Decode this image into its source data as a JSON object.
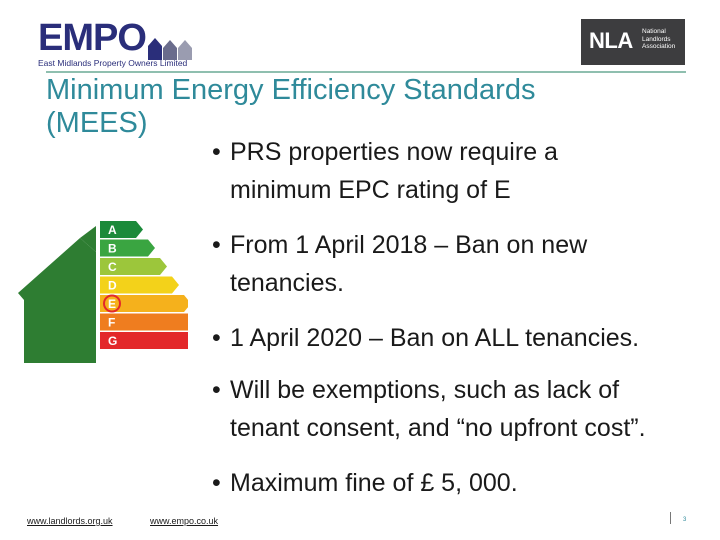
{
  "header": {
    "empo_wordmark": "EMPO",
    "empo_tagline": "East Midlands Property Owners Limited",
    "nla_wordmark": "NLA",
    "nla_tagline_lines": [
      "National",
      "Landlords",
      "Association"
    ]
  },
  "slide": {
    "title_line1": "Minimum Energy Efficiency Standards",
    "title_line2": "(MEES)",
    "bullets": [
      {
        "line1": "PRS properties now require a",
        "line2": "minimum EPC rating of E"
      },
      {
        "line1": "From 1 April 2018 – Ban on new",
        "line2": "tenancies."
      },
      {
        "line1": "1 April 2020 – Ban on ALL tenancies.",
        "line2": ""
      },
      {
        "line1": "Will be exemptions, such as lack of",
        "line2": "tenant consent, and “no upfront cost”."
      },
      {
        "line1": "Maximum fine of £ 5, 000.",
        "line2": ""
      }
    ],
    "bullet_symbol": "•"
  },
  "epc_graphic": {
    "ratings": [
      "A",
      "B",
      "C",
      "D",
      "E",
      "F",
      "G"
    ],
    "highlighted_rating": "E",
    "colors": {
      "house": "#2e7d32",
      "A": "#1b8a3a",
      "B": "#3aa541",
      "C": "#9cc63b",
      "D": "#f3d21a",
      "E": "#f5b11c",
      "F": "#ef7d1f",
      "G": "#e3282a",
      "highlight_ring": "#e3282a"
    }
  },
  "footer": {
    "link_left": "www.landlords.org.uk",
    "link_right": "www.empo.co.uk",
    "page_number": "3"
  },
  "colors": {
    "title": "#2f8a9a",
    "empo_brand": "#2a2e7a",
    "nla_background": "#3d3d3f",
    "header_rule": "#8fbfaf"
  }
}
